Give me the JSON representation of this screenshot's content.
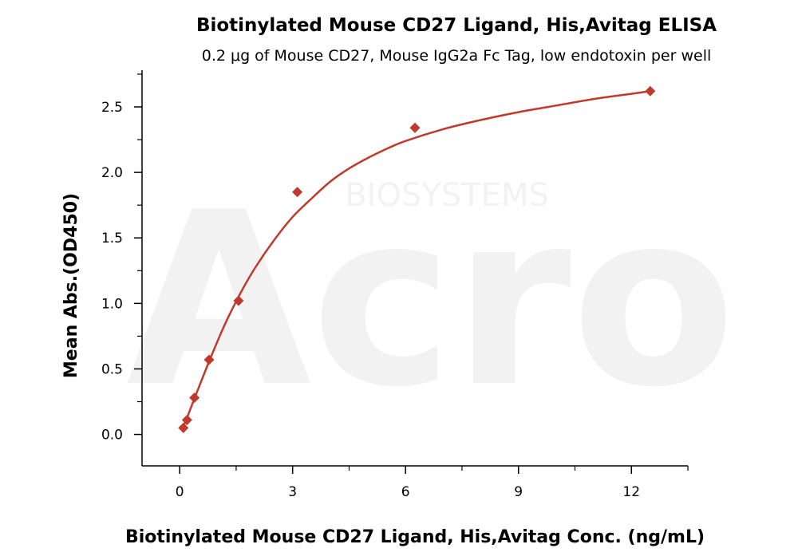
{
  "chart_data": {
    "type": "scatter",
    "title": "Biotinylated Mouse CD27 Ligand, His,Avitag ELISA",
    "subtitle": "0.2 μg of Mouse CD27, Mouse IgG2a Fc Tag, low endotoxin per well",
    "xlabel": "Biotinylated Mouse CD27 Ligand, His,Avitag Conc. (ng/mL)",
    "ylabel": "Mean Abs.(OD450)",
    "xlim": [
      -1,
      13.5
    ],
    "ylim": [
      -0.24,
      2.78
    ],
    "x_ticks": [
      0,
      3,
      6,
      9,
      12
    ],
    "y_ticks": [
      0.0,
      0.5,
      1.0,
      1.5,
      2.0,
      2.5
    ],
    "x_tick_labels": [
      "0",
      "3",
      "6",
      "9",
      "12"
    ],
    "y_tick_labels": [
      "0.0",
      "0.5",
      "1.0",
      "1.5",
      "2.0",
      "2.5"
    ],
    "grid": false,
    "marker_color": "#c0392b",
    "curve_color": "#c0392b",
    "series": [
      {
        "points": [
          {
            "x": 0.098,
            "y": 0.05
          },
          {
            "x": 0.195,
            "y": 0.11
          },
          {
            "x": 0.391,
            "y": 0.28
          },
          {
            "x": 0.781,
            "y": 0.57
          },
          {
            "x": 1.563,
            "y": 1.02
          },
          {
            "x": 3.125,
            "y": 1.85
          },
          {
            "x": 6.25,
            "y": 2.34
          },
          {
            "x": 12.5,
            "y": 2.62
          }
        ],
        "fit_curve": [
          {
            "x": 0.1,
            "y": 0.06
          },
          {
            "x": 0.2,
            "y": 0.13
          },
          {
            "x": 0.4,
            "y": 0.28
          },
          {
            "x": 0.8,
            "y": 0.57
          },
          {
            "x": 1.2,
            "y": 0.84
          },
          {
            "x": 1.6,
            "y": 1.07
          },
          {
            "x": 2.0,
            "y": 1.27
          },
          {
            "x": 2.5,
            "y": 1.48
          },
          {
            "x": 3.0,
            "y": 1.66
          },
          {
            "x": 3.5,
            "y": 1.8
          },
          {
            "x": 4.0,
            "y": 1.93
          },
          {
            "x": 4.5,
            "y": 2.03
          },
          {
            "x": 5.0,
            "y": 2.11
          },
          {
            "x": 5.5,
            "y": 2.18
          },
          {
            "x": 6.0,
            "y": 2.24
          },
          {
            "x": 7.0,
            "y": 2.33
          },
          {
            "x": 8.0,
            "y": 2.4
          },
          {
            "x": 9.0,
            "y": 2.46
          },
          {
            "x": 10.0,
            "y": 2.51
          },
          {
            "x": 11.0,
            "y": 2.56
          },
          {
            "x": 12.0,
            "y": 2.6
          },
          {
            "x": 12.5,
            "y": 2.62
          }
        ]
      }
    ]
  }
}
